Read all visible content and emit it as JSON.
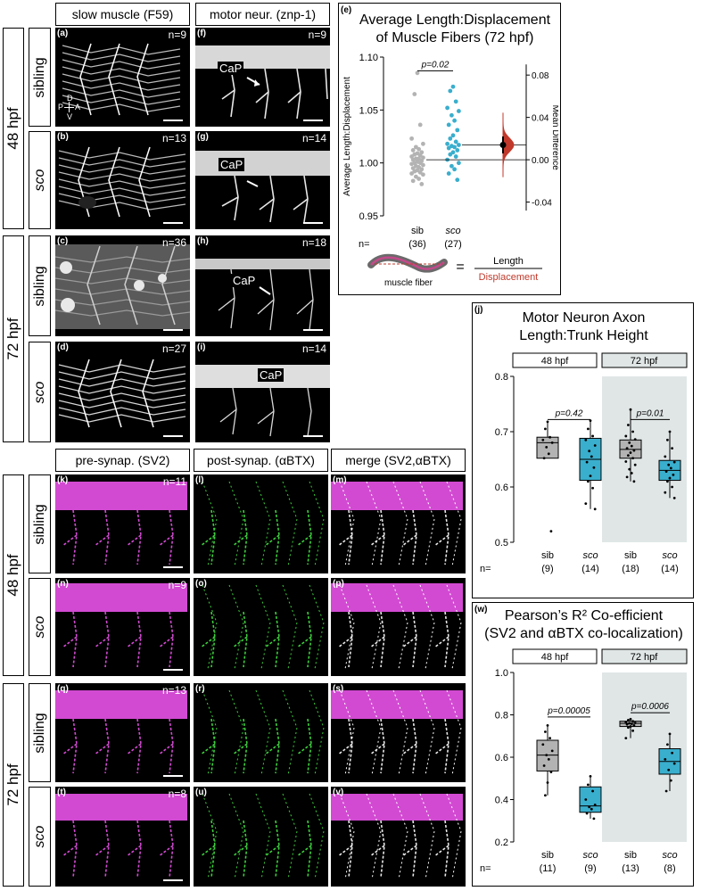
{
  "top_headers": {
    "slow_muscle": "slow muscle (F59)",
    "motor_neur": "motor neur. (znp-1)"
  },
  "bottom_headers": {
    "pre": "pre-synap. (SV2)",
    "post": "post-synap. (αBTX)",
    "merge": "merge (SV2,αBTX)"
  },
  "row_labels": {
    "h48": "48 hpf",
    "h72": "72 hpf",
    "sibling": "sibling",
    "sco": "sco"
  },
  "axis_marker": {
    "d": "D",
    "p": "P",
    "a": "A",
    "v": "V"
  },
  "callout": "CaP",
  "panels": {
    "a": {
      "letter": "(a)",
      "n": "n=9"
    },
    "b": {
      "letter": "(b)",
      "n": "n=13"
    },
    "c": {
      "letter": "(c)",
      "n": "n=36"
    },
    "d": {
      "letter": "(d)",
      "n": "n=27"
    },
    "f": {
      "letter": "(f)",
      "n": "n=9"
    },
    "g": {
      "letter": "(g)",
      "n": "n=14"
    },
    "h": {
      "letter": "(h)",
      "n": "n=18"
    },
    "i": {
      "letter": "(i)",
      "n": "n=14"
    },
    "k": {
      "letter": "(k)",
      "n": "n=11"
    },
    "l": {
      "letter": "(l)",
      "n": ""
    },
    "m": {
      "letter": "(m)",
      "n": ""
    },
    "n": {
      "letter": "(n)",
      "n": "n=9"
    },
    "o": {
      "letter": "(o)",
      "n": ""
    },
    "p": {
      "letter": "(p)",
      "n": ""
    },
    "q": {
      "letter": "(q)",
      "n": "n=13"
    },
    "r": {
      "letter": "(r)",
      "n": ""
    },
    "s": {
      "letter": "(s)",
      "n": ""
    },
    "t": {
      "letter": "(t)",
      "n": "n=8"
    },
    "u": {
      "letter": "(u)",
      "n": ""
    },
    "v": {
      "letter": "(v)",
      "n": ""
    }
  },
  "colors": {
    "gray": "#b3b3b3",
    "cyan": "#3aaecd",
    "magenta": "#d24ad2",
    "green": "#3ccf3c",
    "red": "#c0392b",
    "shade": "#e0e6e6"
  },
  "chart_data": [
    {
      "id": "e",
      "letter": "(e)",
      "type": "scatter",
      "title": "Average Length:Displacement of Muscle Fibers (72 hpf)",
      "title_lines": [
        "Average Length:Displacement",
        "of Muscle Fibers (72 hpf)"
      ],
      "ylabel": "Average Length:Displacement",
      "ylabel_right": "Mean Difference",
      "ylim": [
        0.95,
        1.1
      ],
      "yticks": [
        0.95,
        1.0,
        1.05,
        1.1
      ],
      "ylim_right": [
        -0.05,
        0.1
      ],
      "yticks_right": [
        -0.04,
        0.0,
        0.04,
        0.08
      ],
      "categories": [
        "sib",
        "sco"
      ],
      "n_labels": [
        "(36)",
        "(27)"
      ],
      "n_prefix": "n=",
      "p_value": "p=0.02",
      "series": [
        {
          "name": "sib",
          "color": "#b3b3b3",
          "mean": 1.003,
          "values": [
            1.085,
            1.065,
            1.036,
            1.023,
            1.018,
            1.015,
            1.013,
            1.012,
            1.01,
            1.009,
            1.008,
            1.007,
            1.006,
            1.005,
            1.004,
            1.004,
            1.003,
            1.002,
            1.001,
            1.0,
            1.0,
            0.999,
            0.998,
            0.997,
            0.996,
            0.995,
            0.994,
            0.993,
            0.992,
            0.991,
            0.99,
            0.989,
            0.987,
            0.985,
            0.983,
            0.98
          ]
        },
        {
          "name": "sco",
          "color": "#3aaecd",
          "mean": 1.017,
          "values": [
            1.072,
            1.068,
            1.058,
            1.052,
            1.049,
            1.045,
            1.04,
            1.036,
            1.031,
            1.026,
            1.023,
            1.02,
            1.018,
            1.017,
            1.016,
            1.015,
            1.014,
            1.012,
            1.01,
            1.008,
            1.006,
            1.003,
            1.0,
            0.997,
            0.994,
            0.99,
            0.984
          ]
        }
      ],
      "mean_difference": 0.014,
      "mean_difference_ci": [
        0.006,
        0.022
      ],
      "legend": {
        "label": "muscle fiber",
        "equals": "=",
        "numerator": "Length",
        "denominator": "Displacement"
      }
    },
    {
      "id": "j",
      "letter": "(j)",
      "type": "box",
      "title_lines": [
        "Motor Neuron Axon",
        "Length:Trunk Height"
      ],
      "ylim": [
        0.5,
        0.8
      ],
      "yticks": [
        0.5,
        0.6,
        0.7,
        0.8
      ],
      "groups": [
        "48 hpf",
        "72 hpf"
      ],
      "categories": [
        "sib",
        "sco",
        "sib",
        "sco"
      ],
      "n_labels": [
        "(9)",
        "(14)",
        "(18)",
        "(14)"
      ],
      "n_prefix": "n=",
      "p_values": [
        "p=0.42",
        "p=0.01"
      ],
      "series": [
        {
          "name": "sib",
          "q1": 0.652,
          "median": 0.68,
          "q3": 0.69,
          "whisker": [
            0.652,
            0.718
          ],
          "color": "#b3b3b3",
          "points": [
            0.718,
            0.705,
            0.69,
            0.685,
            0.68,
            0.672,
            0.66,
            0.652,
            0.52
          ]
        },
        {
          "name": "sco",
          "q1": 0.612,
          "median": 0.65,
          "q3": 0.688,
          "whisker": [
            0.56,
            0.72
          ],
          "color": "#3aaecd",
          "points": [
            0.72,
            0.705,
            0.692,
            0.685,
            0.675,
            0.665,
            0.655,
            0.645,
            0.635,
            0.62,
            0.61,
            0.598,
            0.57,
            0.56
          ]
        },
        {
          "name": "sib",
          "q1": 0.652,
          "median": 0.668,
          "q3": 0.685,
          "whisker": [
            0.61,
            0.74
          ],
          "color": "#b3b3b3",
          "points": [
            0.74,
            0.712,
            0.7,
            0.692,
            0.686,
            0.68,
            0.674,
            0.67,
            0.666,
            0.662,
            0.657,
            0.652,
            0.646,
            0.64,
            0.632,
            0.625,
            0.618,
            0.61
          ]
        },
        {
          "name": "sco",
          "q1": 0.612,
          "median": 0.63,
          "q3": 0.648,
          "whisker": [
            0.58,
            0.7
          ],
          "color": "#3aaecd",
          "points": [
            0.7,
            0.685,
            0.67,
            0.655,
            0.645,
            0.64,
            0.634,
            0.628,
            0.622,
            0.616,
            0.61,
            0.6,
            0.59,
            0.58
          ]
        }
      ]
    },
    {
      "id": "w",
      "letter": "(w)",
      "type": "box",
      "title_lines": [
        "Pearson’s R² Co-efficient",
        "(SV2 and αBTX co-localization)"
      ],
      "ylim": [
        0.2,
        1.0
      ],
      "yticks": [
        0.2,
        0.4,
        0.6,
        0.8,
        1.0
      ],
      "groups": [
        "48 hpf",
        "72 hpf"
      ],
      "categories": [
        "sib",
        "sco",
        "sib",
        "sco"
      ],
      "n_labels": [
        "(11)",
        "(9)",
        "(13)",
        "(8)"
      ],
      "n_prefix": "n=",
      "p_values": [
        "p=0.00005",
        "p=0.0006"
      ],
      "series": [
        {
          "name": "sib",
          "q1": 0.535,
          "median": 0.61,
          "q3": 0.68,
          "whisker": [
            0.42,
            0.75
          ],
          "color": "#b3b3b3",
          "points": [
            0.75,
            0.72,
            0.69,
            0.66,
            0.63,
            0.61,
            0.59,
            0.56,
            0.53,
            0.48,
            0.42
          ]
        },
        {
          "name": "sco",
          "q1": 0.34,
          "median": 0.37,
          "q3": 0.46,
          "whisker": [
            0.31,
            0.51
          ],
          "color": "#3aaecd",
          "points": [
            0.51,
            0.47,
            0.44,
            0.4,
            0.375,
            0.365,
            0.355,
            0.335,
            0.31
          ]
        },
        {
          "name": "sib",
          "q1": 0.745,
          "median": 0.76,
          "q3": 0.77,
          "whisker": [
            0.69,
            0.78
          ],
          "color": "#b3b3b3",
          "points": [
            0.78,
            0.775,
            0.77,
            0.765,
            0.762,
            0.76,
            0.758,
            0.755,
            0.75,
            0.745,
            0.74,
            0.725,
            0.69
          ]
        },
        {
          "name": "sco",
          "q1": 0.52,
          "median": 0.58,
          "q3": 0.64,
          "whisker": [
            0.44,
            0.71
          ],
          "color": "#3aaecd",
          "points": [
            0.71,
            0.66,
            0.62,
            0.59,
            0.57,
            0.54,
            0.49,
            0.44
          ]
        }
      ]
    }
  ]
}
